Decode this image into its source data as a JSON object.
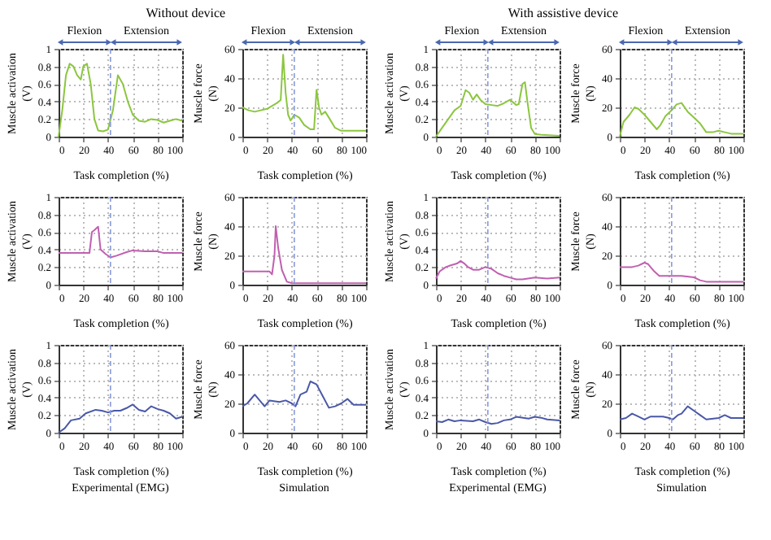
{
  "chart_data": [
    {
      "type": "line",
      "title": "Without device",
      "ylabel": "Muscle activation (V)",
      "xlabel": "Task completion (%)",
      "x": [
        0,
        3,
        6,
        9,
        12,
        15,
        18,
        20,
        23,
        26,
        29,
        32,
        36,
        40,
        44,
        48,
        52,
        56,
        60,
        65,
        70,
        75,
        80,
        85,
        90,
        95,
        100
      ],
      "series": [
        {
          "color": "#8cc63f",
          "values": [
            0,
            0.3,
            0.7,
            0.83,
            0.8,
            0.7,
            0.65,
            0.8,
            0.83,
            0.6,
            0.2,
            0.07,
            0.06,
            0.08,
            0.3,
            0.7,
            0.6,
            0.4,
            0.25,
            0.18,
            0.17,
            0.2,
            0.19,
            0.16,
            0.18,
            0.2,
            0.18
          ]
        }
      ],
      "xlim": [
        0,
        100
      ],
      "ylim": [
        0,
        1
      ],
      "xticks": [
        0,
        20,
        40,
        60,
        80,
        100
      ],
      "yticks": [
        0,
        0.2,
        0.4,
        0.6,
        0.8,
        1
      ],
      "grid": true,
      "ref_lines": [
        {
          "axis": "x",
          "value": 42,
          "color": "#8899dd",
          "line_style": "dashed"
        }
      ],
      "annotations": [
        "Flexion",
        "Extension"
      ]
    },
    {
      "type": "line",
      "ylabel": "Muscle force (N)",
      "xlabel": "Task completion (%)",
      "x": [
        0,
        5,
        10,
        20,
        28,
        31,
        33,
        35,
        37,
        39,
        42,
        46,
        50,
        55,
        58,
        60,
        62,
        64,
        67,
        70,
        75,
        80,
        90,
        100
      ],
      "series": [
        {
          "color": "#8cc63f",
          "values": [
            20,
            18,
            17,
            19,
            23,
            25,
            56,
            30,
            15,
            11,
            15,
            13,
            8,
            5,
            5,
            32,
            20,
            15,
            17,
            13,
            6,
            4,
            4,
            4
          ]
        }
      ],
      "xlim": [
        0,
        100
      ],
      "ylim": [
        0,
        60
      ],
      "xticks": [
        0,
        20,
        40,
        60,
        80,
        100
      ],
      "yticks": [
        0,
        20,
        40,
        60
      ],
      "grid": true,
      "ref_lines": [
        {
          "axis": "x",
          "value": 42,
          "color": "#8899dd",
          "line_style": "dashed"
        }
      ],
      "annotations": [
        "Flexion",
        "Extension"
      ]
    },
    {
      "type": "line",
      "title": "With assistive device",
      "ylabel": "Muscle activation (V)",
      "xlabel": "Task completion (%)",
      "x": [
        0,
        5,
        10,
        15,
        20,
        24,
        27,
        30,
        33,
        36,
        40,
        45,
        50,
        55,
        60,
        65,
        67,
        70,
        72,
        74,
        77,
        80,
        85,
        100
      ],
      "series": [
        {
          "color": "#8cc63f",
          "values": [
            0,
            0.1,
            0.2,
            0.3,
            0.35,
            0.53,
            0.5,
            0.42,
            0.48,
            0.42,
            0.37,
            0.36,
            0.35,
            0.38,
            0.42,
            0.36,
            0.37,
            0.6,
            0.62,
            0.4,
            0.1,
            0.03,
            0.02,
            0.01
          ]
        }
      ],
      "xlim": [
        0,
        100
      ],
      "ylim": [
        0,
        1
      ],
      "xticks": [
        0,
        20,
        40,
        60,
        80,
        100
      ],
      "yticks": [
        0,
        0.2,
        0.4,
        0.6,
        0.8,
        1
      ],
      "grid": true,
      "ref_lines": [
        {
          "axis": "x",
          "value": 42,
          "color": "#8899dd",
          "line_style": "dashed"
        }
      ],
      "annotations": [
        "Flexion",
        "Extension"
      ]
    },
    {
      "type": "line",
      "ylabel": "Muscle force (N)",
      "xlabel": "Task completion (%)",
      "x": [
        0,
        3,
        8,
        12,
        15,
        20,
        25,
        30,
        33,
        37,
        42,
        46,
        50,
        55,
        60,
        65,
        70,
        75,
        80,
        85,
        90,
        100
      ],
      "series": [
        {
          "color": "#8cc63f",
          "values": [
            0,
            10,
            15,
            20,
            19,
            15,
            10,
            5,
            8,
            14,
            18,
            22,
            23,
            17,
            13,
            9,
            3,
            3,
            4,
            3,
            2,
            2
          ]
        }
      ],
      "xlim": [
        0,
        100
      ],
      "ylim": [
        0,
        60
      ],
      "xticks": [
        0,
        20,
        40,
        60,
        80,
        100
      ],
      "yticks": [
        0,
        20,
        40,
        60
      ],
      "grid": true,
      "ref_lines": [
        {
          "axis": "x",
          "value": 42,
          "color": "#8899dd",
          "line_style": "dashed"
        }
      ],
      "annotations": [
        "Flexion",
        "Extension"
      ]
    },
    {
      "type": "line",
      "ylabel": "Muscle activation (V)",
      "xlabel": "Task completion (%)",
      "x": [
        0,
        25,
        27,
        29,
        32,
        34,
        38,
        42,
        47,
        55,
        60,
        70,
        80,
        85,
        100
      ],
      "series": [
        {
          "color": "#c060b0",
          "values": [
            0.36,
            0.36,
            0.6,
            0.62,
            0.66,
            0.4,
            0.35,
            0.31,
            0.33,
            0.37,
            0.39,
            0.38,
            0.38,
            0.36,
            0.36
          ]
        }
      ],
      "xlim": [
        0,
        100
      ],
      "ylim": [
        0,
        1
      ],
      "xticks": [
        0,
        20,
        40,
        60,
        80,
        100
      ],
      "yticks": [
        0,
        0.2,
        0.4,
        0.6,
        0.8,
        1
      ],
      "grid": true,
      "ref_lines": [
        {
          "axis": "x",
          "value": 42,
          "color": "#8899dd",
          "line_style": "dashed"
        }
      ]
    },
    {
      "type": "line",
      "ylabel": "Muscle force (N)",
      "xlabel": "Task completion (%)",
      "x": [
        0,
        22,
        24,
        26,
        27,
        29,
        32,
        36,
        40,
        100
      ],
      "series": [
        {
          "color": "#c060b0",
          "values": [
            9,
            9,
            7,
            20,
            40,
            25,
            10,
            2,
            1,
            1
          ]
        }
      ],
      "xlim": [
        0,
        100
      ],
      "ylim": [
        0,
        60
      ],
      "xticks": [
        0,
        20,
        40,
        60,
        80,
        100
      ],
      "yticks": [
        0,
        20,
        40,
        60
      ],
      "grid": true,
      "ref_lines": [
        {
          "axis": "x",
          "value": 42,
          "color": "#8899dd",
          "line_style": "dashed"
        }
      ]
    },
    {
      "type": "line",
      "ylabel": "Muscle activation (V)",
      "xlabel": "Task completion (%)",
      "x": [
        0,
        3,
        8,
        12,
        17,
        20,
        23,
        26,
        30,
        35,
        40,
        45,
        50,
        55,
        60,
        65,
        70,
        80,
        90,
        100
      ],
      "series": [
        {
          "color": "#c060b0",
          "values": [
            0.07,
            0.15,
            0.2,
            0.22,
            0.24,
            0.27,
            0.24,
            0.2,
            0.17,
            0.17,
            0.2,
            0.18,
            0.13,
            0.1,
            0.08,
            0.06,
            0.06,
            0.08,
            0.07,
            0.08
          ]
        }
      ],
      "xlim": [
        0,
        100
      ],
      "ylim": [
        0,
        1
      ],
      "xticks": [
        0,
        20,
        40,
        60,
        80,
        100
      ],
      "yticks": [
        0,
        0.2,
        0.4,
        0.6,
        0.8,
        1
      ],
      "grid": true,
      "ref_lines": [
        {
          "axis": "x",
          "value": 42,
          "color": "#8899dd",
          "line_style": "dashed"
        }
      ]
    },
    {
      "type": "line",
      "ylabel": "Muscle force (N)",
      "xlabel": "Task completion (%)",
      "x": [
        0,
        10,
        15,
        20,
        23,
        28,
        32,
        40,
        50,
        60,
        65,
        70,
        80,
        100
      ],
      "series": [
        {
          "color": "#c060b0",
          "values": [
            12,
            12,
            13,
            15,
            14,
            9,
            6,
            6,
            6,
            5,
            3,
            2,
            2,
            2
          ]
        }
      ],
      "xlim": [
        0,
        100
      ],
      "ylim": [
        0,
        60
      ],
      "xticks": [
        0,
        20,
        40,
        60,
        80,
        100
      ],
      "yticks": [
        0,
        20,
        40,
        60
      ],
      "grid": true,
      "ref_lines": [
        {
          "axis": "x",
          "value": 42,
          "color": "#8899dd",
          "line_style": "dashed"
        }
      ]
    },
    {
      "type": "line",
      "ylabel": "Muscle activation (V)",
      "xlabel": "Task completion (%)",
      "x": [
        0,
        5,
        10,
        17,
        22,
        30,
        35,
        40,
        45,
        50,
        55,
        60,
        65,
        70,
        75,
        80,
        85,
        90,
        95,
        100
      ],
      "series": [
        {
          "color": "#4a58a8",
          "values": [
            0,
            0.05,
            0.14,
            0.16,
            0.22,
            0.26,
            0.25,
            0.23,
            0.25,
            0.25,
            0.28,
            0.32,
            0.26,
            0.24,
            0.3,
            0.27,
            0.25,
            0.22,
            0.16,
            0.18
          ]
        }
      ],
      "xlim": [
        0,
        100
      ],
      "ylim": [
        0,
        1
      ],
      "xticks": [
        0,
        20,
        40,
        60,
        80,
        100
      ],
      "yticks": [
        0,
        0.2,
        0.4,
        0.6,
        0.8,
        1
      ],
      "grid": true,
      "ref_lines": [
        {
          "axis": "x",
          "value": 42,
          "color": "#8899dd",
          "line_style": "dashed"
        }
      ],
      "annotations": [
        "Experimental (EMG)"
      ]
    },
    {
      "type": "line",
      "ylabel": "Muscle force (N)",
      "xlabel": "Task completion (%)",
      "x": [
        0,
        4,
        10,
        14,
        18,
        22,
        30,
        35,
        40,
        43,
        47,
        52,
        55,
        60,
        65,
        70,
        75,
        80,
        85,
        90,
        100
      ],
      "series": [
        {
          "color": "#4a58a8",
          "values": [
            18,
            20,
            26,
            22,
            18,
            22,
            21,
            22,
            20,
            18,
            26,
            28,
            35,
            33,
            25,
            17,
            18,
            20,
            23,
            19,
            19
          ]
        }
      ],
      "xlim": [
        0,
        100
      ],
      "ylim": [
        0,
        60
      ],
      "xticks": [
        0,
        20,
        40,
        60,
        80,
        100
      ],
      "yticks": [
        0,
        20,
        40,
        60
      ],
      "grid": true,
      "ref_lines": [
        {
          "axis": "x",
          "value": 42,
          "color": "#8899dd",
          "line_style": "dashed"
        }
      ],
      "annotations": [
        "Simulation"
      ]
    },
    {
      "type": "line",
      "ylabel": "Muscle activation (V)",
      "xlabel": "Task completion (%)",
      "x": [
        0,
        5,
        10,
        15,
        20,
        30,
        35,
        40,
        45,
        50,
        55,
        60,
        65,
        75,
        80,
        85,
        90,
        100
      ],
      "series": [
        {
          "color": "#4a58a8",
          "values": [
            0.13,
            0.12,
            0.15,
            0.13,
            0.14,
            0.13,
            0.15,
            0.12,
            0.1,
            0.11,
            0.14,
            0.15,
            0.18,
            0.16,
            0.18,
            0.17,
            0.15,
            0.14
          ]
        }
      ],
      "xlim": [
        0,
        100
      ],
      "ylim": [
        0,
        1
      ],
      "xticks": [
        0,
        20,
        40,
        60,
        80,
        100
      ],
      "yticks": [
        0,
        0.2,
        0.4,
        0.6,
        0.8,
        1
      ],
      "grid": true,
      "ref_lines": [
        {
          "axis": "x",
          "value": 42,
          "color": "#8899dd",
          "line_style": "dashed"
        }
      ],
      "annotations": [
        "Experimental (EMG)"
      ]
    },
    {
      "type": "line",
      "ylabel": "Muscle force (N)",
      "xlabel": "Task completion (%)",
      "x": [
        0,
        5,
        10,
        15,
        20,
        25,
        35,
        40,
        43,
        47,
        50,
        55,
        60,
        65,
        70,
        80,
        85,
        90,
        100
      ],
      "series": [
        {
          "color": "#4a58a8",
          "values": [
            9,
            10,
            13,
            11,
            9,
            11,
            11,
            10,
            9,
            12,
            13,
            18,
            15,
            12,
            9,
            10,
            12,
            10,
            10
          ]
        }
      ],
      "xlim": [
        0,
        100
      ],
      "ylim": [
        0,
        60
      ],
      "xticks": [
        0,
        20,
        40,
        60,
        80,
        100
      ],
      "yticks": [
        0,
        20,
        40,
        60
      ],
      "grid": true,
      "ref_lines": [
        {
          "axis": "x",
          "value": 42,
          "color": "#8899dd",
          "line_style": "dashed"
        }
      ],
      "annotations": [
        "Simulation"
      ]
    }
  ]
}
